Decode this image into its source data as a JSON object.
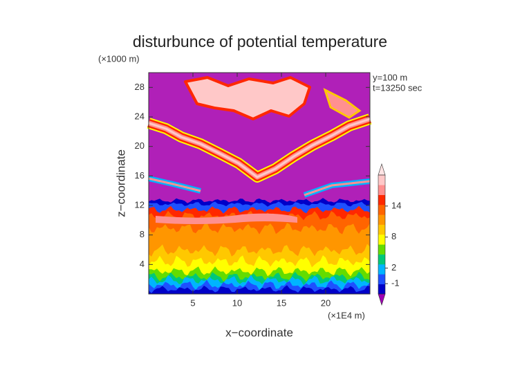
{
  "chart_data": {
    "type": "contour",
    "title": "disturbunce of potential temperature",
    "x_label": "x−coordinate",
    "y_label": "z−coordinate",
    "x_unit": "(×1E4 m)",
    "y_unit": "(×1000 m)",
    "annotations": [
      "y=100 m",
      "t=13250 sec"
    ],
    "xlim": [
      0,
      25
    ],
    "xticks": [
      5,
      10,
      15,
      20
    ],
    "ylim": [
      0,
      30
    ],
    "yticks": [
      4,
      8,
      12,
      16,
      20,
      24,
      28
    ],
    "clim": [
      -3,
      20
    ],
    "cticks": [
      -1,
      2,
      8,
      14
    ],
    "colors": [
      "#0000c8",
      "#1e50ff",
      "#00b4ff",
      "#00c878",
      "#64dc00",
      "#ffff00",
      "#ffc800",
      "#ff9600",
      "#ff6400",
      "#ff2800",
      "#ff9090",
      "#ffc8c8"
    ],
    "under_color": "#a000b4",
    "over_color": "#ffe4e4",
    "background_color": "#b020b8"
  }
}
